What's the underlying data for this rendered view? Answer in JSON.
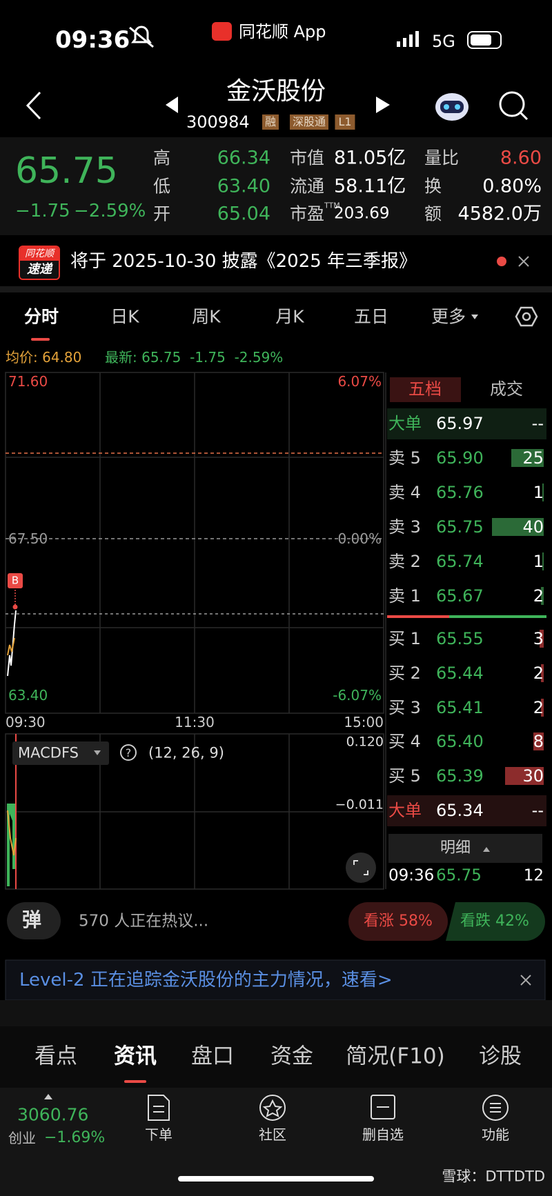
{
  "status_bar": {
    "time": "09:36",
    "app": "同花顺 App",
    "network": "5G"
  },
  "header": {
    "title": "金沃股份",
    "code": "300984",
    "tags": [
      "融",
      "深股通",
      "L1"
    ]
  },
  "quote": {
    "price": "65.75",
    "change": "−1.75",
    "change_pct": "−2.59%",
    "stats": [
      {
        "label": "高",
        "value": "66.34"
      },
      {
        "label": "低",
        "value": "63.40"
      },
      {
        "label": "开",
        "value": "65.04"
      },
      {
        "label": "市值",
        "value": "81.05亿"
      },
      {
        "label": "流通",
        "value": "58.11亿"
      },
      {
        "label": "市盈",
        "sup": "TTM",
        "value": "203.69"
      },
      {
        "label": "量比",
        "value": "8.60"
      },
      {
        "label": "换",
        "value": "0.80%"
      },
      {
        "label": "额",
        "value": "4582.0万"
      }
    ]
  },
  "notice": {
    "badge_top": "同花顺",
    "badge_bottom": "速递",
    "text": "将于 2025-10-30 披露《2025 年三季报》"
  },
  "tabs": [
    "分时",
    "日K",
    "周K",
    "月K",
    "五日",
    "更多"
  ],
  "chart_info": {
    "avg_label": "均价:",
    "avg": "64.80",
    "latest_label": "最新:",
    "latest": "65.75",
    "change": "-1.75",
    "change_pct": "-2.59%"
  },
  "chart": {
    "y_top": "71.60",
    "y_mid": "67.50",
    "y_bottom": "63.40",
    "pct_top": "6.07%",
    "pct_mid": "0.00%",
    "pct_bottom": "-6.07%",
    "times": [
      "09:30",
      "11:30",
      "15:00"
    ],
    "marker": "B"
  },
  "macd": {
    "name": "MACDFS",
    "help": "?",
    "params": "(12, 26, 9)",
    "top": "0.120",
    "mid": "−0.011"
  },
  "order_book": {
    "tabs": [
      "五档",
      "成交"
    ],
    "sell": [
      [
        "大单",
        "65.97",
        "--"
      ],
      [
        "卖 5",
        "65.90",
        "25"
      ],
      [
        "卖 4",
        "65.76",
        "1"
      ],
      [
        "卖 3",
        "65.75",
        "40"
      ],
      [
        "卖 2",
        "65.74",
        "1"
      ],
      [
        "卖 1",
        "65.67",
        "2"
      ]
    ],
    "buy": [
      [
        "买 1",
        "65.55",
        "3"
      ],
      [
        "买 2",
        "65.44",
        "2"
      ],
      [
        "买 3",
        "65.41",
        "2"
      ],
      [
        "买 4",
        "65.40",
        "8"
      ],
      [
        "买 5",
        "65.39",
        "30"
      ],
      [
        "大单",
        "65.34",
        "--"
      ]
    ],
    "detail_label": "明细",
    "trade": [
      "09:36",
      "65.75",
      "12"
    ]
  },
  "discussion": {
    "icon": "弹",
    "text": "570 人正在热议...",
    "bull": "看涨 58%",
    "bear": "看跌 42%"
  },
  "level2_banner": "Level-2 正在追踪金沃股份的主力情况，速看>",
  "bottom_tabs": [
    "看点",
    "资讯",
    "盘口",
    "资金",
    "简况(F10)",
    "诊股"
  ],
  "bottom_bar": {
    "index_value": "3060.76",
    "index_name": "创业",
    "index_change": "−1.69%",
    "buttons": [
      "下单",
      "社区",
      "删自选",
      "功能"
    ]
  },
  "watermark": "雪球：DTTDTD"
}
